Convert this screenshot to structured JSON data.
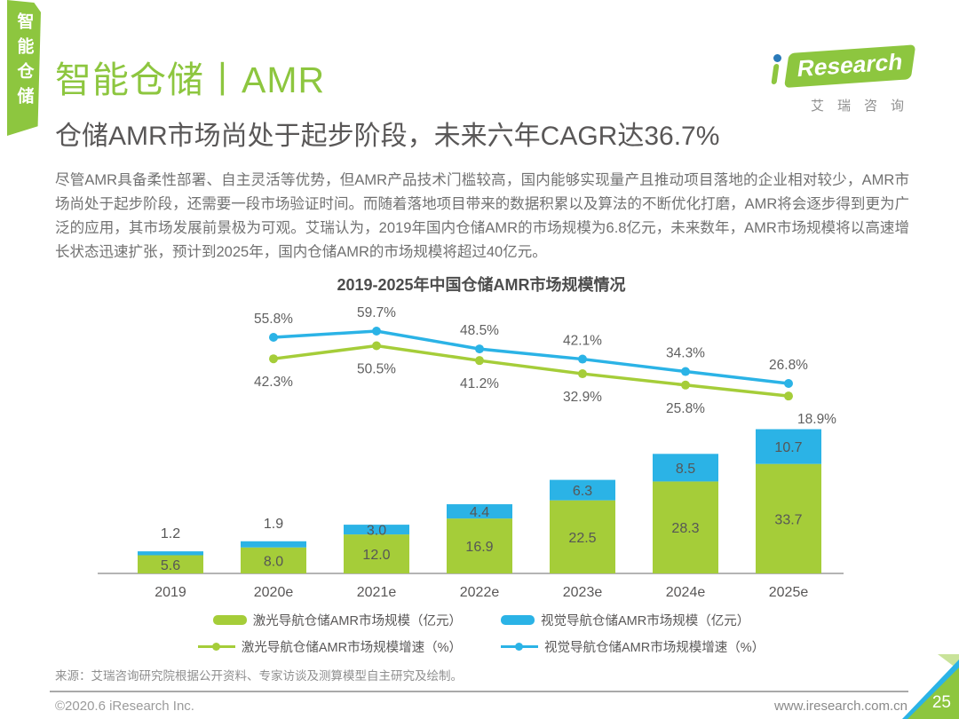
{
  "sidebar_tab": {
    "label": "智能仓储"
  },
  "header": {
    "title": "智能仓储丨AMR",
    "logo": {
      "research_text": "Research",
      "subtext": "艾瑞咨询"
    }
  },
  "headline": "仓储AMR市场尚处于起步阶段，未来六年CAGR达36.7%",
  "body_paragraph": "尽管AMR具备柔性部署、自主灵活等优势，但AMR产品技术门槛较高，国内能够实现量产且推动项目落地的企业相对较少，AMR市场尚处于起步阶段，还需要一段市场验证时间。而随着落地项目带来的数据积累以及算法的不断优化打磨，AMR将会逐步得到更为广泛的应用，其市场发展前景极为可观。艾瑞认为，2019年国内仓储AMR的市场规模为6.8亿元，未来数年，AMR市场规模将以高速增长状态迅速扩张，预计到2025年，国内仓储AMR的市场规模将超过40亿元。",
  "chart_data": {
    "type": "bar",
    "subtype": "stacked-bar-with-growth-lines",
    "title": "2019-2025年中国仓储AMR市场规模情况",
    "categories": [
      "2019",
      "2020e",
      "2021e",
      "2022e",
      "2023e",
      "2024e",
      "2025e"
    ],
    "bar_series": [
      {
        "name": "激光导航仓储AMR市场规模（亿元）",
        "color": "#a5cd39",
        "values": [
          5.6,
          8.0,
          12.0,
          16.9,
          22.5,
          28.3,
          33.7
        ]
      },
      {
        "name": "视觉导航仓储AMR市场规模（亿元）",
        "color": "#2bb3e6",
        "values": [
          1.2,
          1.9,
          3.0,
          4.4,
          6.3,
          8.5,
          10.7
        ]
      }
    ],
    "line_series": [
      {
        "name": "激光导航仓储AMR市场规模增速（%）",
        "color": "#a5cd39",
        "x_categories": [
          "2020e",
          "2021e",
          "2022e",
          "2023e",
          "2024e",
          "2025e"
        ],
        "values": [
          42.3,
          50.5,
          41.2,
          32.9,
          25.8,
          18.9
        ],
        "label_position": "below",
        "label_dx": [
          0,
          0,
          0,
          0,
          0,
          32
        ]
      },
      {
        "name": "视觉导航仓储AMR市场规模增速（%）",
        "color": "#2bb3e6",
        "x_categories": [
          "2020e",
          "2021e",
          "2022e",
          "2023e",
          "2024e",
          "2025e"
        ],
        "values": [
          55.8,
          59.7,
          48.5,
          42.1,
          34.3,
          26.8
        ],
        "label_position": "above",
        "label_dx": [
          0,
          0,
          0,
          0,
          0,
          0
        ]
      }
    ],
    "value_label_suffix": "",
    "pct_label_suffix": "%",
    "grid": false,
    "y_axis_visible": false,
    "x_axis_line": true,
    "legend_position": "bottom"
  },
  "source": "来源：艾瑞咨询研究院根据公开资料、专家访谈及测算模型自主研究及绘制。",
  "footer": {
    "copyright": "©2020.6 iResearch Inc.",
    "website": "www.iresearch.com.cn",
    "page_number": "25"
  },
  "colors": {
    "brand_green": "#8dc63f",
    "bar_green": "#a5cd39",
    "bar_blue": "#2bb3e6",
    "headline_gray": "#595757",
    "axis_gray": "#9b9b9b"
  }
}
